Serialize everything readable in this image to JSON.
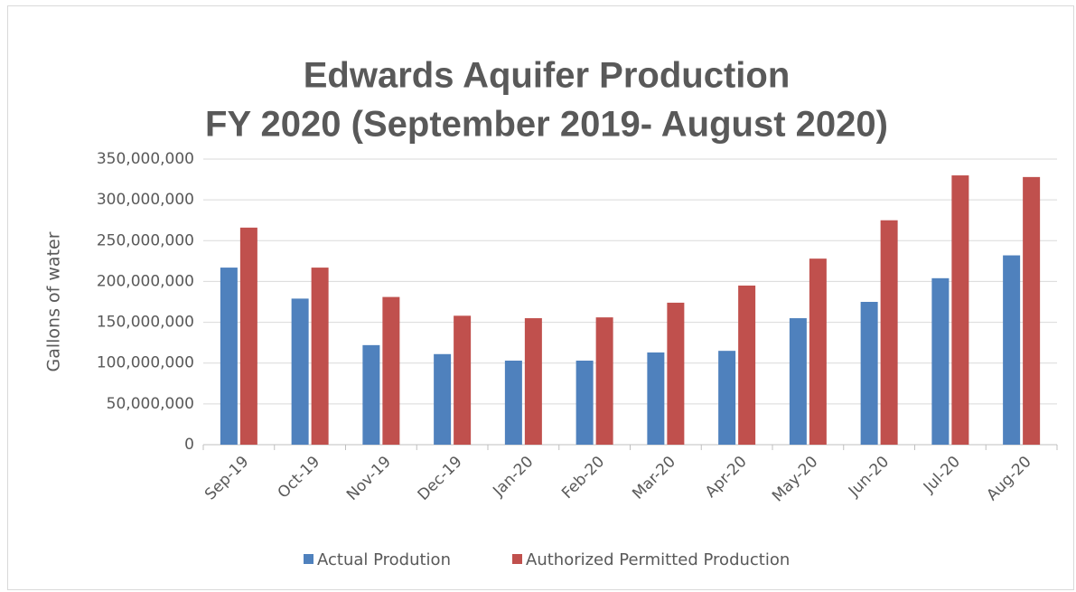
{
  "chart_data": {
    "type": "bar",
    "title": [
      "Edwards Aquifer Production",
      "FY 2020 (September 2019- August 2020)"
    ],
    "y_label": "Gallons of water",
    "categories": [
      "Sep-19",
      "Oct-19",
      "Nov-19",
      "Dec-19",
      "Jan-20",
      "Feb-20",
      "Mar-20",
      "Apr-20",
      "May-20",
      "Jun-20",
      "Jul-20",
      "Aug-20"
    ],
    "series": [
      {
        "name": "Actual Prodution",
        "color": "#4f81bd",
        "values": [
          217000000,
          179000000,
          122000000,
          111000000,
          103000000,
          103000000,
          113000000,
          115000000,
          155000000,
          175000000,
          204000000,
          232000000
        ]
      },
      {
        "name": "Authorized Permitted Production",
        "color": "#c0504d",
        "values": [
          266000000,
          217000000,
          181000000,
          158000000,
          155000000,
          156000000,
          174000000,
          195000000,
          228000000,
          275000000,
          330000000,
          328000000
        ]
      }
    ],
    "ylim": [
      0,
      350000000
    ],
    "yticks": [
      0,
      {
        "value": 50000000,
        "label": "50,000,000"
      },
      {
        "value": 100000000,
        "label": "100,000,000"
      },
      {
        "value": 150000000,
        "label": "150,000,000"
      },
      {
        "value": 200000000,
        "label": "200,000,000"
      },
      {
        "value": 250000000,
        "label": "250,000,000"
      },
      {
        "value": 300000000,
        "label": "300,000,000"
      },
      {
        "value": 350000000,
        "label": "350,000,000"
      }
    ],
    "grid": true,
    "legend": "bottom"
  }
}
